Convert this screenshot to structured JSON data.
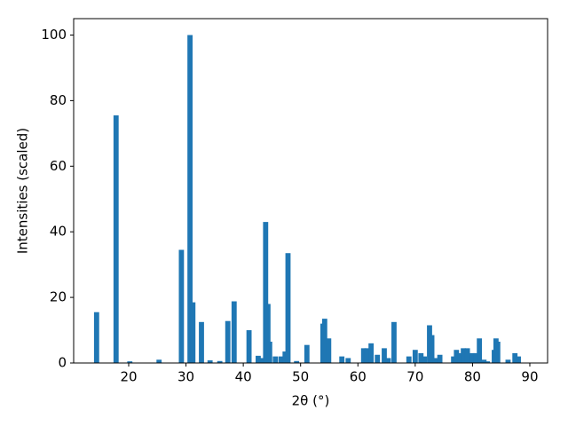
{
  "chart_data": {
    "type": "bar",
    "x_label": "2θ (°)",
    "y_label": "Intensities (scaled)",
    "x": [
      14.4,
      17.8,
      20.2,
      25.3,
      29.2,
      30.7,
      31.2,
      32.7,
      34.2,
      35.9,
      37.3,
      38.4,
      41.0,
      42.6,
      43.3,
      43.9,
      44.3,
      44.6,
      45.6,
      46.6,
      47.3,
      47.8,
      49.3,
      51.1,
      53.9,
      54.2,
      54.9,
      57.2,
      58.3,
      61.0,
      61.6,
      62.3,
      63.4,
      64.6,
      65.3,
      66.3,
      68.9,
      70.0,
      71.0,
      71.6,
      72.5,
      72.9,
      73.5,
      74.3,
      76.7,
      77.2,
      77.9,
      78.4,
      79.1,
      79.9,
      80.6,
      81.2,
      82.0,
      82.6,
      83.8,
      84.1,
      84.4,
      86.2,
      87.4,
      88.0
    ],
    "values": [
      15.5,
      75.5,
      0.5,
      1,
      34.5,
      100,
      18.5,
      12.5,
      0.8,
      0.6,
      12.8,
      18.8,
      10,
      2.2,
      1.5,
      43,
      18,
      6.5,
      2,
      2,
      3.5,
      33.5,
      0.6,
      5.5,
      12,
      13.5,
      7.5,
      2,
      1.5,
      4.5,
      4.5,
      6,
      2.5,
      4.5,
      1.5,
      12.5,
      2,
      4,
      3,
      2,
      11.5,
      8.5,
      1.5,
      2.5,
      2,
      4,
      3,
      4.5,
      4.5,
      3,
      3,
      7.5,
      1,
      0.5,
      4,
      7.5,
      6.5,
      1,
      3,
      2
    ],
    "color": "#1f77b4",
    "xlim": [
      10.4,
      93.1
    ],
    "ylim": [
      0,
      105
    ],
    "xticks": [
      20,
      30,
      40,
      50,
      60,
      70,
      80,
      90
    ],
    "yticks": [
      0,
      20,
      40,
      60,
      80,
      100
    ]
  }
}
